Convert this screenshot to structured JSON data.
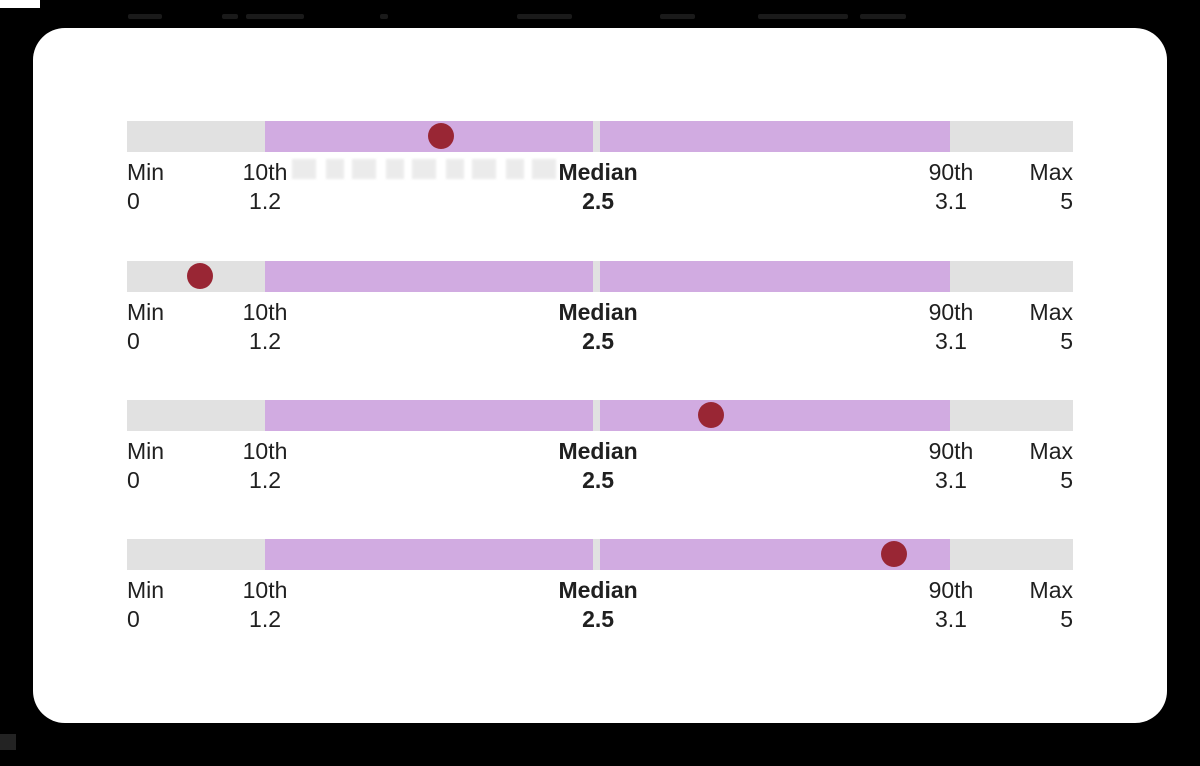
{
  "window": {
    "background": "#000000"
  },
  "card": {
    "background": "#ffffff"
  },
  "colors": {
    "card": "#ffffff",
    "track": "#e1e1e1",
    "range": "#d1abe1",
    "dot": "#992634",
    "label": "#202020"
  },
  "scale": {
    "min": {
      "label": "Min",
      "value": "0"
    },
    "p10": {
      "label": "10th",
      "value": "1.2"
    },
    "median": {
      "label": "Median",
      "value": "2.5"
    },
    "p90": {
      "label": "90th",
      "value": "3.1"
    },
    "max": {
      "label": "Max",
      "value": "5"
    }
  },
  "chart_data": {
    "type": "bar",
    "variant": "percentile-range-with-dot-marker",
    "title": "",
    "xlabel": "",
    "ylabel": "",
    "axis": {
      "min": 0,
      "p10": 1.2,
      "median": 2.5,
      "p90": 3.1,
      "max": 5
    },
    "tick_labels": [
      "Min 0",
      "10th 1.2",
      "Median 2.5",
      "90th 3.1",
      "Max 5"
    ],
    "layout_pct": {
      "range_start": 14.59,
      "gap_start": 49.26,
      "gap_end": 50.0,
      "range_end": 87.05
    },
    "rows": [
      {
        "dot_pct": 33.19,
        "value_est": 1.9
      },
      {
        "dot_pct": 7.72,
        "value_est": 0.6
      },
      {
        "dot_pct": 61.73,
        "value_est": 2.7
      },
      {
        "dot_pct": 81.08,
        "value_est": 3.0
      }
    ]
  }
}
